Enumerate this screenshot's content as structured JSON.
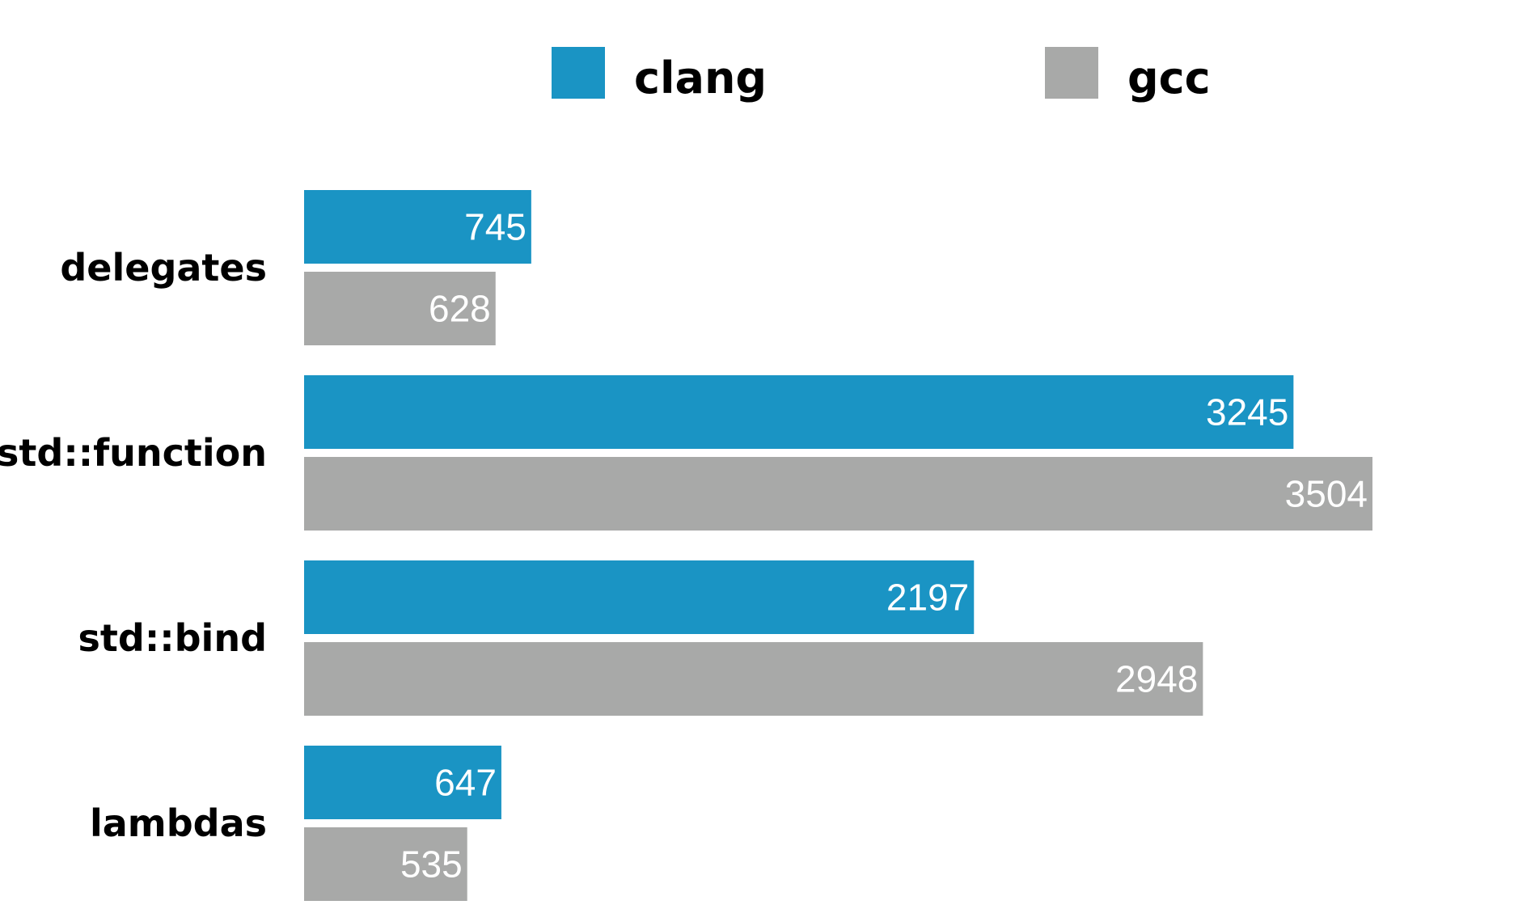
{
  "chart_data": {
    "type": "bar",
    "orientation": "horizontal",
    "title": "",
    "xlabel": "",
    "ylabel": "",
    "categories": [
      "delegates",
      "std::function",
      "std::bind",
      "lambdas"
    ],
    "series": [
      {
        "name": "clang",
        "color": "#1a94c4",
        "values": [
          745,
          3245,
          2197,
          647
        ]
      },
      {
        "name": "gcc",
        "color": "#a8a9a8",
        "values": [
          628,
          3504,
          2948,
          535
        ]
      }
    ],
    "xlim": [
      0,
      3504
    ],
    "grid": false,
    "legend_position": "top-center",
    "data_labels": true
  }
}
